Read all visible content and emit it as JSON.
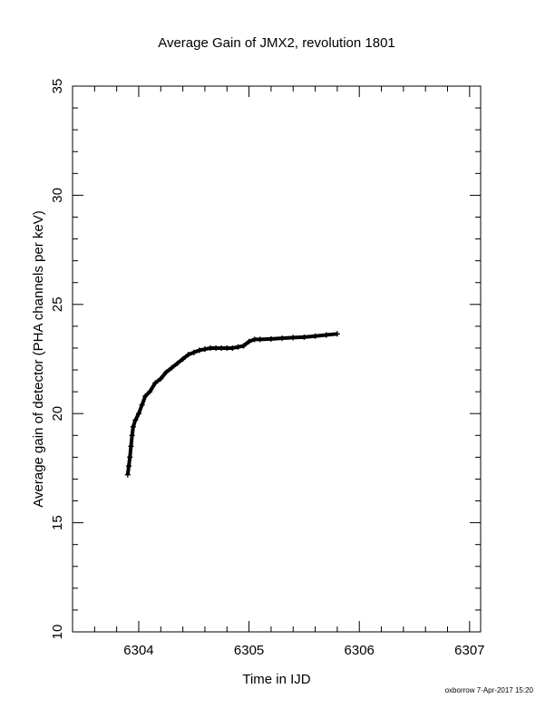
{
  "chart_data": {
    "type": "scatter",
    "title": "Average Gain of JMX2, revolution 1801",
    "xlabel": "Time in IJD",
    "ylabel": "Average gain of detector (PHA channels per keV)",
    "xlim": [
      6303.4,
      6307.1
    ],
    "ylim": [
      10,
      35
    ],
    "xticks": [
      6304,
      6305,
      6306,
      6307
    ],
    "yticks": [
      10,
      15,
      20,
      25,
      30,
      35
    ],
    "marker": "plus",
    "color": "#000000",
    "series": [
      {
        "x": [
          6303.9,
          6303.91,
          6303.92,
          6303.93,
          6303.94,
          6303.95,
          6303.97,
          6304.0,
          6304.03,
          6304.06,
          6304.1,
          6304.15,
          6304.2,
          6304.25,
          6304.3,
          6304.35,
          6304.4,
          6304.45,
          6304.5,
          6304.55,
          6304.6,
          6304.65,
          6304.7,
          6304.75,
          6304.8,
          6304.85,
          6304.9,
          6304.95,
          6305.0,
          6305.05,
          6305.1,
          6305.2,
          6305.3,
          6305.4,
          6305.5,
          6305.6,
          6305.7,
          6305.8
        ],
        "y": [
          17.2,
          17.6,
          18.0,
          18.5,
          19.0,
          19.4,
          19.7,
          20.0,
          20.4,
          20.8,
          21.0,
          21.4,
          21.6,
          21.9,
          22.1,
          22.3,
          22.5,
          22.7,
          22.8,
          22.9,
          22.95,
          23.0,
          23.0,
          23.0,
          23.0,
          23.0,
          23.05,
          23.1,
          23.3,
          23.4,
          23.4,
          23.42,
          23.45,
          23.48,
          23.5,
          23.55,
          23.6,
          23.65
        ]
      }
    ]
  },
  "footer": "oxborrow  7-Apr-2017 15:20"
}
